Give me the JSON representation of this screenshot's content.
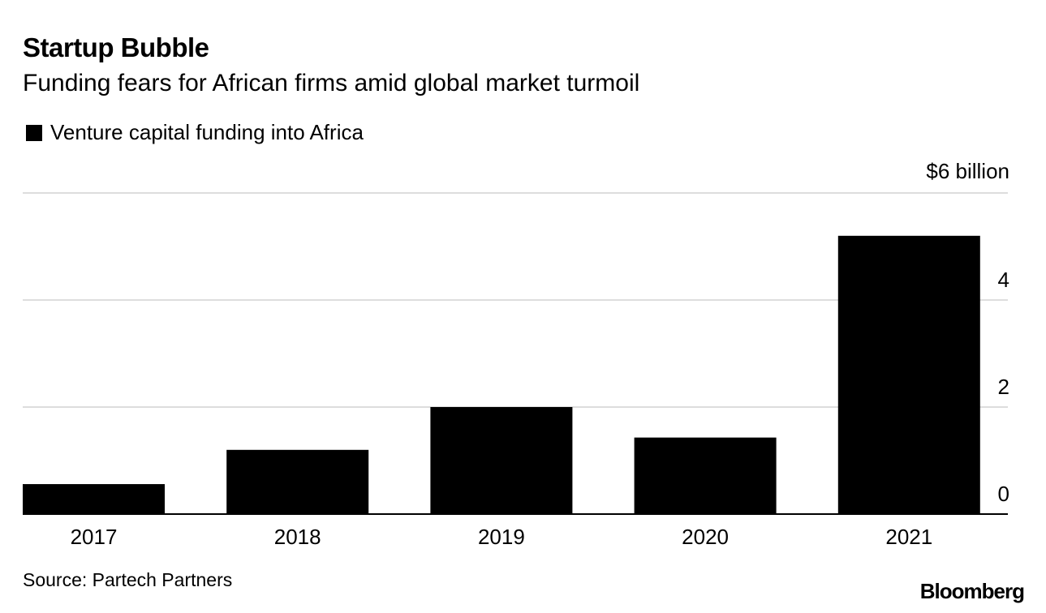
{
  "title": "Startup Bubble",
  "subtitle": "Funding fears for African firms amid global market turmoil",
  "legend_label": "Venture capital funding into Africa",
  "source": "Source: Partech Partners",
  "brand": "Bloomberg",
  "colors": {
    "bar": "#000000",
    "grid": "#dddddd",
    "axis": "#000000"
  },
  "chart_data": {
    "type": "bar",
    "categories": [
      "2017",
      "2018",
      "2019",
      "2020",
      "2021"
    ],
    "series": [
      {
        "name": "Venture capital funding into Africa",
        "values": [
          0.56,
          1.2,
          2.0,
          1.43,
          5.2
        ]
      }
    ],
    "ylim": [
      0,
      6
    ],
    "yticks": [
      0,
      2,
      4,
      6
    ],
    "ytick_labels": [
      "0",
      "2",
      "4",
      "$6 billion"
    ],
    "grid": true,
    "legend_position": "top-left",
    "y_axis_side": "right"
  }
}
